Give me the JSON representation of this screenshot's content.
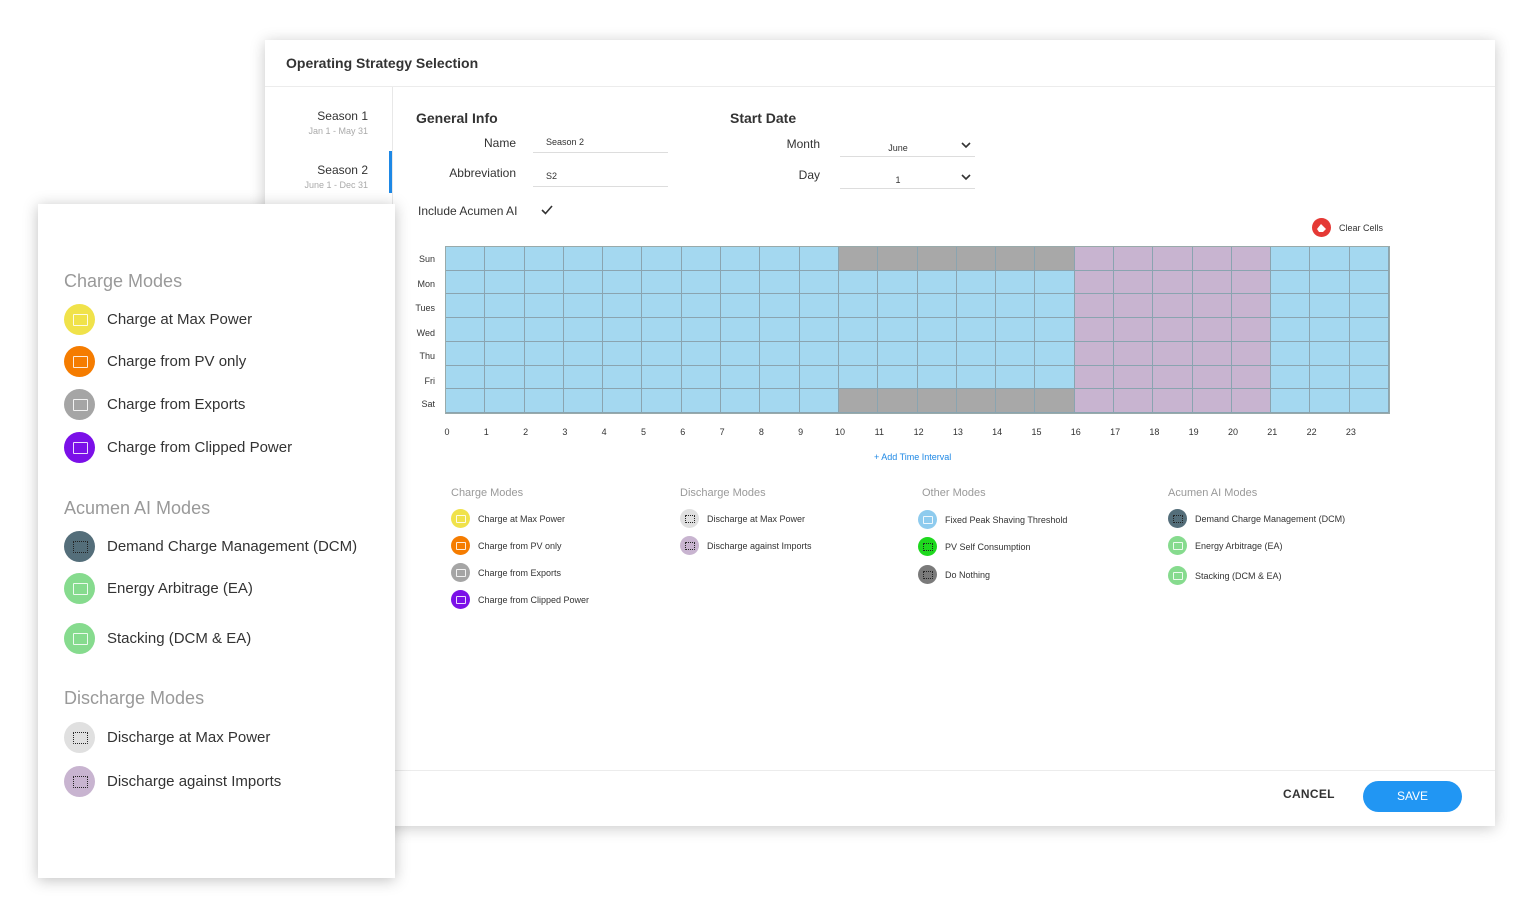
{
  "dialog": {
    "title": "Operating Strategy Selection",
    "seasons": [
      {
        "name": "Season 1",
        "range": "Jan 1 - May 31",
        "active": false
      },
      {
        "name": "Season 2",
        "range": "June 1 - Dec 31",
        "active": true
      }
    ],
    "general_info": {
      "title": "General Info",
      "name_label": "Name",
      "name_value": "Season 2",
      "abbr_label": "Abbreviation",
      "abbr_value": "S2",
      "include_ai_label": "Include Acumen AI",
      "include_ai_checked": true
    },
    "start_date": {
      "title": "Start Date",
      "month_label": "Month",
      "month_value": "June",
      "day_label": "Day",
      "day_value": "1"
    },
    "clear_cells_label": "Clear Cells",
    "add_interval_label": "+ Add Time Interval",
    "cancel_label": "CANCEL",
    "save_label": "SAVE"
  },
  "schedule": {
    "days": [
      "Sun",
      "Mon",
      "Tues",
      "Wed",
      "Thu",
      "Fri",
      "Sat"
    ],
    "hours": [
      "0",
      "1",
      "2",
      "3",
      "4",
      "5",
      "6",
      "7",
      "8",
      "9",
      "10",
      "11",
      "12",
      "13",
      "14",
      "15",
      "16",
      "17",
      "18",
      "19",
      "20",
      "21",
      "22",
      "23"
    ],
    "mode_colors": {
      "fixed_peak": "#a4d8f0",
      "do_nothing": "#a8a8a8",
      "discharge_imports": "#c8b4d0"
    },
    "weekday_pattern": [
      "fixed_peak",
      "fixed_peak",
      "fixed_peak",
      "fixed_peak",
      "fixed_peak",
      "fixed_peak",
      "fixed_peak",
      "fixed_peak",
      "fixed_peak",
      "fixed_peak",
      "fixed_peak",
      "fixed_peak",
      "fixed_peak",
      "fixed_peak",
      "fixed_peak",
      "fixed_peak",
      "discharge_imports",
      "discharge_imports",
      "discharge_imports",
      "discharge_imports",
      "discharge_imports",
      "fixed_peak",
      "fixed_peak",
      "fixed_peak"
    ],
    "weekend_pattern": [
      "fixed_peak",
      "fixed_peak",
      "fixed_peak",
      "fixed_peak",
      "fixed_peak",
      "fixed_peak",
      "fixed_peak",
      "fixed_peak",
      "fixed_peak",
      "fixed_peak",
      "do_nothing",
      "do_nothing",
      "do_nothing",
      "do_nothing",
      "do_nothing",
      "do_nothing",
      "discharge_imports",
      "discharge_imports",
      "discharge_imports",
      "discharge_imports",
      "discharge_imports",
      "fixed_peak",
      "fixed_peak",
      "fixed_peak"
    ]
  },
  "legend": {
    "charge": {
      "title": "Charge Modes",
      "items": [
        {
          "label": "Charge at Max Power",
          "color": "#f0e24a",
          "icon": "battery-charge-icon"
        },
        {
          "label": "Charge from PV only",
          "color": "#f57c00",
          "icon": "battery-charge-icon"
        },
        {
          "label": "Charge from Exports",
          "color": "#a5a5a5",
          "icon": "battery-charge-icon"
        },
        {
          "label": "Charge from Clipped Power",
          "color": "#7b10e8",
          "icon": "battery-charge-icon"
        }
      ]
    },
    "discharge": {
      "title": "Discharge Modes",
      "items": [
        {
          "label": "Discharge at Max Power",
          "color": "#e0e0e0",
          "icon": "battery-discharge-icon"
        },
        {
          "label": "Discharge against Imports",
          "color": "#c8b4d0",
          "icon": "battery-discharge-icon"
        }
      ]
    },
    "other": {
      "title": "Other Modes",
      "items": [
        {
          "label": "Fixed Peak Shaving Threshold",
          "color": "#8ecbee",
          "icon": "battery-icon"
        },
        {
          "label": "PV Self Consumption",
          "color": "#1ed81e",
          "icon": "battery-icon"
        },
        {
          "label": "Do Nothing",
          "color": "#7a7a7a",
          "icon": "battery-icon"
        }
      ]
    },
    "acumen": {
      "title": "Acumen AI Modes",
      "items": [
        {
          "label": "Demand Charge Management (DCM)",
          "color": "#546e7a",
          "icon": "battery-ai-icon"
        },
        {
          "label": "Energy Arbitrage (EA)",
          "color": "#86db8e",
          "icon": "battery-ai-icon"
        },
        {
          "label": "Stacking (DCM & EA)",
          "color": "#86db8e",
          "icon": "battery-ai-icon"
        }
      ]
    }
  },
  "overlay": {
    "charge_title": "Charge Modes",
    "charge_items": [
      {
        "label": "Charge at Max Power",
        "color": "#f0e24a"
      },
      {
        "label": "Charge from PV only",
        "color": "#f57c00"
      },
      {
        "label": "Charge from Exports",
        "color": "#a5a5a5"
      },
      {
        "label": "Charge from Clipped Power",
        "color": "#7b10e8"
      }
    ],
    "acumen_title": "Acumen AI Modes",
    "acumen_items": [
      {
        "label": "Demand Charge Management (DCM)",
        "color": "#546e7a"
      },
      {
        "label": "Energy Arbitrage (EA)",
        "color": "#86db8e"
      },
      {
        "label": "Stacking (DCM & EA)",
        "color": "#86db8e"
      }
    ],
    "discharge_title": "Discharge Modes",
    "discharge_items": [
      {
        "label": "Discharge at Max Power",
        "color": "#e0e0e0"
      },
      {
        "label": "Discharge against Imports",
        "color": "#c8b4d0"
      }
    ]
  }
}
